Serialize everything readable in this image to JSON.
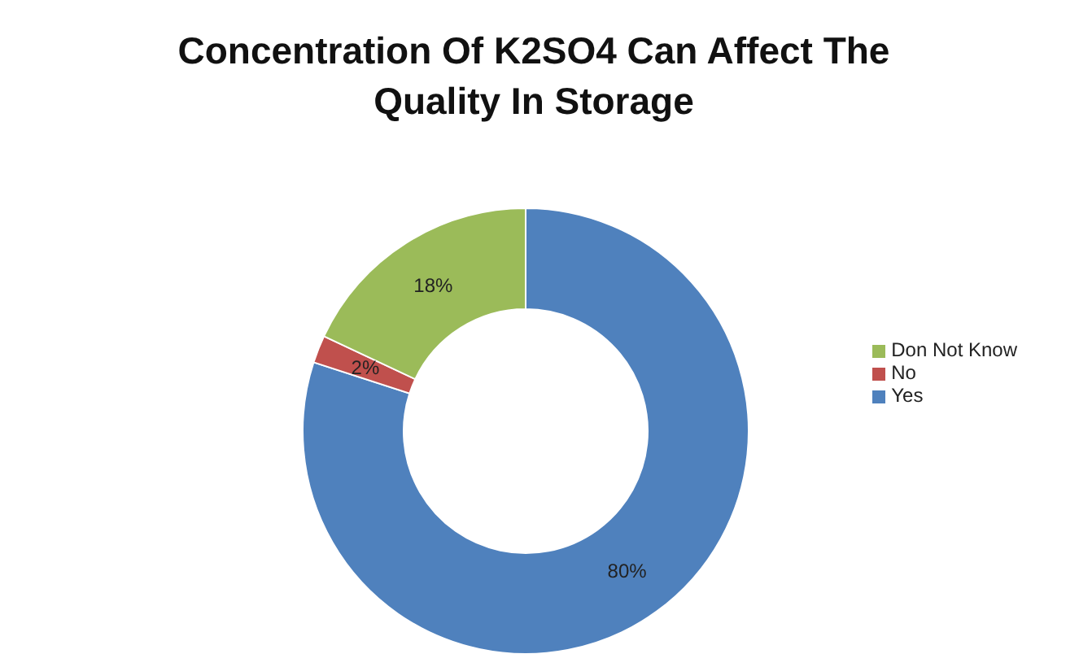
{
  "chart_data": {
    "type": "donut",
    "title": "Concentration Of K2SO4 Can Affect The Quality In Storage",
    "categories": [
      "Yes",
      "No",
      "Don Not Know"
    ],
    "values": [
      80,
      2,
      18
    ],
    "value_labels": [
      "80%",
      "2%",
      "18%"
    ],
    "colors": [
      "#4f81bd",
      "#c0504d",
      "#9bbb59"
    ],
    "legend": "right"
  }
}
